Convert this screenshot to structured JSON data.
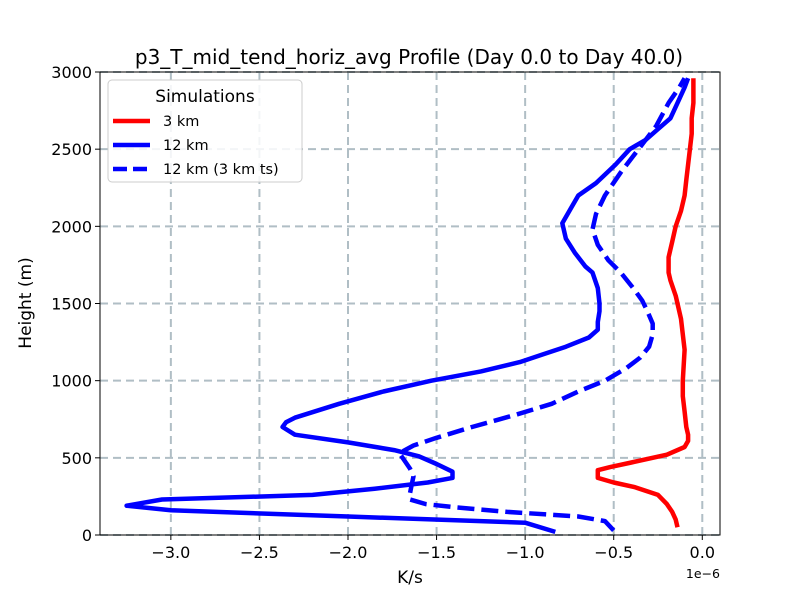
{
  "chart_data": {
    "type": "line",
    "title": "p3_T_mid_tend_horiz_avg Profile (Day 0.0 to Day 40.0)",
    "xlabel": "K/s",
    "ylabel": "Height (m)",
    "x_offset_label": "1e−6",
    "xlim": [
      -3.4,
      0.1
    ],
    "ylim": [
      0,
      3000
    ],
    "xticks": [
      -3.0,
      -2.5,
      -2.0,
      -1.5,
      -1.0,
      -0.5,
      0.0
    ],
    "xtick_labels": [
      "−3.0",
      "−2.5",
      "−2.0",
      "−1.5",
      "−1.0",
      "−0.5",
      "0.0"
    ],
    "yticks": [
      0,
      500,
      1000,
      1500,
      2000,
      2500,
      3000
    ],
    "ytick_labels": [
      "0",
      "500",
      "1000",
      "1500",
      "2000",
      "2500",
      "3000"
    ],
    "grid": true,
    "legend": {
      "title": "Simulations",
      "position": "top-left"
    },
    "series": [
      {
        "name": "3 km",
        "color": "#ff0000",
        "dash": "solid",
        "points": [
          [
            -0.14,
            50
          ],
          [
            -0.15,
            100
          ],
          [
            -0.17,
            150
          ],
          [
            -0.2,
            200
          ],
          [
            -0.25,
            260
          ],
          [
            -0.38,
            310
          ],
          [
            -0.5,
            340
          ],
          [
            -0.59,
            370
          ],
          [
            -0.59,
            420
          ],
          [
            -0.52,
            440
          ],
          [
            -0.4,
            470
          ],
          [
            -0.2,
            520
          ],
          [
            -0.1,
            570
          ],
          [
            -0.08,
            610
          ],
          [
            -0.08,
            650
          ],
          [
            -0.09,
            700
          ],
          [
            -0.1,
            800
          ],
          [
            -0.11,
            900
          ],
          [
            -0.11,
            1000
          ],
          [
            -0.1,
            1200
          ],
          [
            -0.11,
            1300
          ],
          [
            -0.12,
            1400
          ],
          [
            -0.15,
            1550
          ],
          [
            -0.18,
            1650
          ],
          [
            -0.19,
            1700
          ],
          [
            -0.19,
            1800
          ],
          [
            -0.17,
            1900
          ],
          [
            -0.15,
            2000
          ],
          [
            -0.12,
            2100
          ],
          [
            -0.1,
            2200
          ],
          [
            -0.09,
            2300
          ],
          [
            -0.08,
            2400
          ],
          [
            -0.07,
            2500
          ],
          [
            -0.06,
            2600
          ],
          [
            -0.06,
            2700
          ],
          [
            -0.05,
            2800
          ],
          [
            -0.05,
            2900
          ],
          [
            -0.05,
            2960
          ]
        ]
      },
      {
        "name": "12 km",
        "color": "#0000ff",
        "dash": "solid",
        "points": [
          [
            -0.83,
            20
          ],
          [
            -1.0,
            80
          ],
          [
            -2.0,
            120
          ],
          [
            -3.0,
            160
          ],
          [
            -3.25,
            190
          ],
          [
            -3.05,
            230
          ],
          [
            -2.2,
            260
          ],
          [
            -1.85,
            300
          ],
          [
            -1.55,
            340
          ],
          [
            -1.41,
            370
          ],
          [
            -1.41,
            410
          ],
          [
            -1.5,
            460
          ],
          [
            -1.6,
            510
          ],
          [
            -1.74,
            550
          ],
          [
            -2.0,
            600
          ],
          [
            -2.3,
            650
          ],
          [
            -2.37,
            700
          ],
          [
            -2.35,
            730
          ],
          [
            -2.3,
            760
          ],
          [
            -2.05,
            850
          ],
          [
            -1.8,
            930
          ],
          [
            -1.53,
            1000
          ],
          [
            -1.25,
            1060
          ],
          [
            -1.03,
            1120
          ],
          [
            -0.9,
            1170
          ],
          [
            -0.77,
            1220
          ],
          [
            -0.64,
            1280
          ],
          [
            -0.59,
            1330
          ],
          [
            -0.59,
            1380
          ],
          [
            -0.58,
            1450
          ],
          [
            -0.58,
            1500
          ],
          [
            -0.59,
            1600
          ],
          [
            -0.62,
            1700
          ],
          [
            -0.66,
            1740
          ],
          [
            -0.72,
            1830
          ],
          [
            -0.77,
            1920
          ],
          [
            -0.79,
            2020
          ],
          [
            -0.74,
            2120
          ],
          [
            -0.7,
            2200
          ],
          [
            -0.6,
            2280
          ],
          [
            -0.49,
            2400
          ],
          [
            -0.41,
            2500
          ],
          [
            -0.32,
            2560
          ],
          [
            -0.25,
            2630
          ],
          [
            -0.18,
            2700
          ],
          [
            -0.14,
            2800
          ],
          [
            -0.1,
            2900
          ],
          [
            -0.08,
            2960
          ]
        ]
      },
      {
        "name": "12 km (3 km ts)",
        "color": "#0000ff",
        "dash": "dashed",
        "points": [
          [
            -0.5,
            30
          ],
          [
            -0.55,
            90
          ],
          [
            -0.7,
            120
          ],
          [
            -1.1,
            150
          ],
          [
            -1.4,
            180
          ],
          [
            -1.56,
            200
          ],
          [
            -1.65,
            230
          ],
          [
            -1.65,
            270
          ],
          [
            -1.64,
            330
          ],
          [
            -1.63,
            380
          ],
          [
            -1.65,
            430
          ],
          [
            -1.68,
            480
          ],
          [
            -1.71,
            530
          ],
          [
            -1.63,
            580
          ],
          [
            -1.5,
            630
          ],
          [
            -1.3,
            700
          ],
          [
            -1.05,
            780
          ],
          [
            -0.85,
            850
          ],
          [
            -0.7,
            930
          ],
          [
            -0.55,
            1000
          ],
          [
            -0.43,
            1080
          ],
          [
            -0.35,
            1150
          ],
          [
            -0.3,
            1220
          ],
          [
            -0.28,
            1300
          ],
          [
            -0.28,
            1370
          ],
          [
            -0.31,
            1450
          ],
          [
            -0.34,
            1520
          ],
          [
            -0.39,
            1600
          ],
          [
            -0.46,
            1700
          ],
          [
            -0.53,
            1780
          ],
          [
            -0.59,
            1880
          ],
          [
            -0.62,
            1980
          ],
          [
            -0.6,
            2080
          ],
          [
            -0.55,
            2200
          ],
          [
            -0.46,
            2350
          ],
          [
            -0.36,
            2500
          ],
          [
            -0.26,
            2650
          ],
          [
            -0.19,
            2800
          ],
          [
            -0.13,
            2900
          ],
          [
            -0.1,
            2960
          ]
        ]
      }
    ]
  }
}
